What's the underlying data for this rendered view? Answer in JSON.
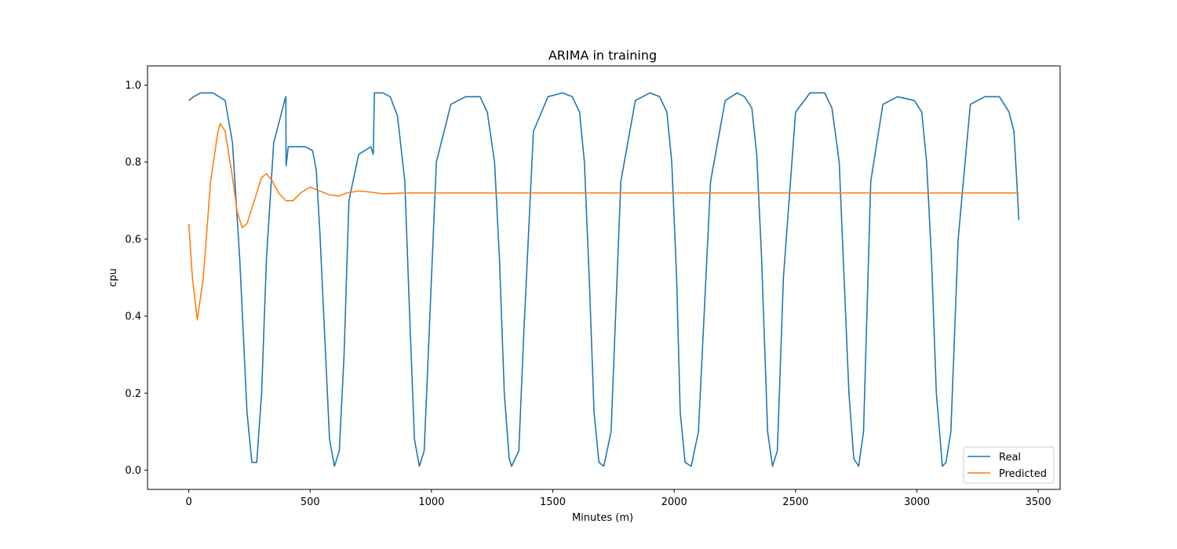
{
  "chart_data": {
    "type": "line",
    "title": "ARIMA in training",
    "xlabel": "Minutes (m)",
    "ylabel": "cpu",
    "xlim": [
      -170,
      3590
    ],
    "ylim": [
      -0.05,
      1.05
    ],
    "xticks": [
      0,
      500,
      1000,
      1500,
      2000,
      2500,
      3000,
      3500
    ],
    "yticks": [
      0.0,
      0.2,
      0.4,
      0.6,
      0.8,
      1.0
    ],
    "xtick_labels": [
      "0",
      "500",
      "1000",
      "1500",
      "2000",
      "2500",
      "3000",
      "3500"
    ],
    "ytick_labels": [
      "0.0",
      "0.2",
      "0.4",
      "0.6",
      "0.8",
      "1.0"
    ],
    "grid": false,
    "legend_position": "bottom-right",
    "series": [
      {
        "name": "Real",
        "color": "#1f77b4",
        "x": [
          0,
          20,
          50,
          100,
          150,
          180,
          210,
          240,
          260,
          280,
          300,
          320,
          350,
          395,
          400,
          401,
          410,
          440,
          480,
          510,
          525,
          540,
          560,
          580,
          600,
          620,
          640,
          660,
          700,
          750,
          760,
          765,
          770,
          800,
          830,
          860,
          890,
          910,
          930,
          950,
          970,
          990,
          1020,
          1080,
          1140,
          1200,
          1230,
          1260,
          1280,
          1300,
          1320,
          1330,
          1360,
          1380,
          1420,
          1480,
          1540,
          1580,
          1610,
          1630,
          1650,
          1670,
          1690,
          1710,
          1740,
          1780,
          1840,
          1900,
          1940,
          1970,
          1990,
          2010,
          2025,
          2045,
          2070,
          2100,
          2150,
          2210,
          2260,
          2290,
          2320,
          2340,
          2360,
          2385,
          2405,
          2425,
          2450,
          2500,
          2560,
          2620,
          2650,
          2680,
          2700,
          2720,
          2740,
          2760,
          2780,
          2810,
          2860,
          2920,
          2990,
          3020,
          3040,
          3060,
          3080,
          3105,
          3120,
          3140,
          3170,
          3220,
          3280,
          3340,
          3380,
          3400,
          3410,
          3420
        ],
        "y": [
          0.96,
          0.97,
          0.98,
          0.98,
          0.96,
          0.85,
          0.55,
          0.15,
          0.02,
          0.02,
          0.2,
          0.55,
          0.85,
          0.96,
          0.97,
          0.79,
          0.84,
          0.84,
          0.84,
          0.83,
          0.78,
          0.62,
          0.35,
          0.08,
          0.01,
          0.05,
          0.3,
          0.7,
          0.82,
          0.84,
          0.82,
          0.98,
          0.98,
          0.98,
          0.97,
          0.92,
          0.75,
          0.4,
          0.08,
          0.01,
          0.05,
          0.35,
          0.8,
          0.95,
          0.97,
          0.97,
          0.93,
          0.8,
          0.55,
          0.2,
          0.03,
          0.01,
          0.05,
          0.35,
          0.88,
          0.97,
          0.98,
          0.97,
          0.93,
          0.8,
          0.5,
          0.15,
          0.02,
          0.01,
          0.1,
          0.75,
          0.96,
          0.98,
          0.97,
          0.93,
          0.8,
          0.5,
          0.15,
          0.02,
          0.01,
          0.1,
          0.75,
          0.96,
          0.98,
          0.97,
          0.94,
          0.82,
          0.55,
          0.1,
          0.01,
          0.05,
          0.5,
          0.93,
          0.98,
          0.98,
          0.94,
          0.8,
          0.5,
          0.2,
          0.03,
          0.01,
          0.1,
          0.75,
          0.95,
          0.97,
          0.96,
          0.93,
          0.8,
          0.55,
          0.2,
          0.01,
          0.02,
          0.1,
          0.6,
          0.95,
          0.97,
          0.97,
          0.93,
          0.88,
          0.77,
          0.65
        ]
      },
      {
        "name": "Predicted",
        "color": "#ff7f0e",
        "x": [
          0,
          15,
          35,
          60,
          90,
          120,
          130,
          150,
          180,
          200,
          220,
          240,
          270,
          300,
          320,
          345,
          370,
          400,
          430,
          460,
          500,
          540,
          580,
          620,
          650,
          700,
          750,
          800,
          900,
          1000,
          1500,
          2000,
          2500,
          3000,
          3420
        ],
        "y": [
          0.64,
          0.5,
          0.39,
          0.5,
          0.75,
          0.88,
          0.9,
          0.88,
          0.76,
          0.67,
          0.63,
          0.64,
          0.7,
          0.76,
          0.77,
          0.75,
          0.72,
          0.7,
          0.7,
          0.72,
          0.735,
          0.725,
          0.715,
          0.712,
          0.72,
          0.725,
          0.722,
          0.718,
          0.72,
          0.72,
          0.72,
          0.72,
          0.72,
          0.72,
          0.72
        ]
      }
    ]
  }
}
